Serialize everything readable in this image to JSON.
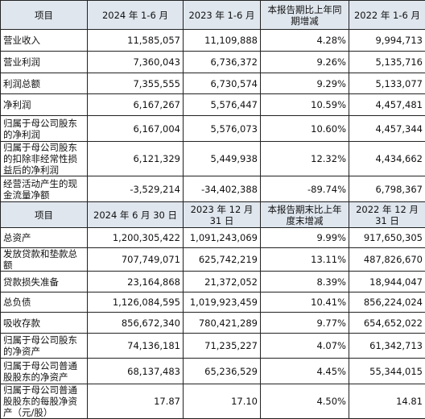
{
  "section1": {
    "headers": [
      "项目",
      "2024 年 1-6 月",
      "2023 年 1-6 月",
      "本报告期比上年同期增减",
      "2022 年 1-6 月"
    ],
    "rows": [
      [
        "营业收入",
        "11,585,057",
        "11,109,888",
        "4.28%",
        "9,994,713"
      ],
      [
        "营业利润",
        "7,360,043",
        "6,736,372",
        "9.26%",
        "5,135,716"
      ],
      [
        "利润总额",
        "7,355,555",
        "6,730,574",
        "9.29%",
        "5,133,077"
      ],
      [
        "净利润",
        "6,167,267",
        "5,576,447",
        "10.59%",
        "4,457,481"
      ],
      [
        "归属于母公司股东的净利润",
        "6,167,004",
        "5,576,073",
        "10.60%",
        "4,457,344"
      ],
      [
        "归属于母公司股东的扣除非经常性损益后的净利润",
        "6,121,329",
        "5,449,938",
        "12.32%",
        "4,434,662"
      ],
      [
        "经营活动产生的现金流量净额",
        "-3,529,214",
        "-34,402,388",
        "-89.74%",
        "6,798,367"
      ]
    ]
  },
  "section2": {
    "headers": [
      "项目",
      "2024 年 6 月 30 日",
      "2023 年 12 月 31 日",
      "本报告期末比上年度末增减",
      "2022 年 12 月 31 日"
    ],
    "rows": [
      [
        "总资产",
        "1,200,305,422",
        "1,091,243,069",
        "9.99%",
        "917,650,305"
      ],
      [
        "发放贷款和垫款总额",
        "707,749,071",
        "625,742,219",
        "13.11%",
        "487,826,670"
      ],
      [
        "贷款损失准备",
        "23,164,868",
        "21,372,052",
        "8.39%",
        "18,944,047"
      ],
      [
        "总负债",
        "1,126,084,595",
        "1,019,923,459",
        "10.41%",
        "856,224,024"
      ],
      [
        "吸收存款",
        "856,672,340",
        "780,421,289",
        "9.77%",
        "654,652,022"
      ],
      [
        "归属于母公司股东的净资产",
        "74,136,181",
        "71,235,227",
        "4.07%",
        "61,342,713"
      ],
      [
        "归属于母公司普通股股东的净资产",
        "68,137,483",
        "65,236,529",
        "4.45%",
        "55,344,015"
      ],
      [
        "归属于母公司普通股股东的每股净资产（元/股）",
        "17.87",
        "17.10",
        "4.50%",
        "14.81"
      ]
    ]
  }
}
